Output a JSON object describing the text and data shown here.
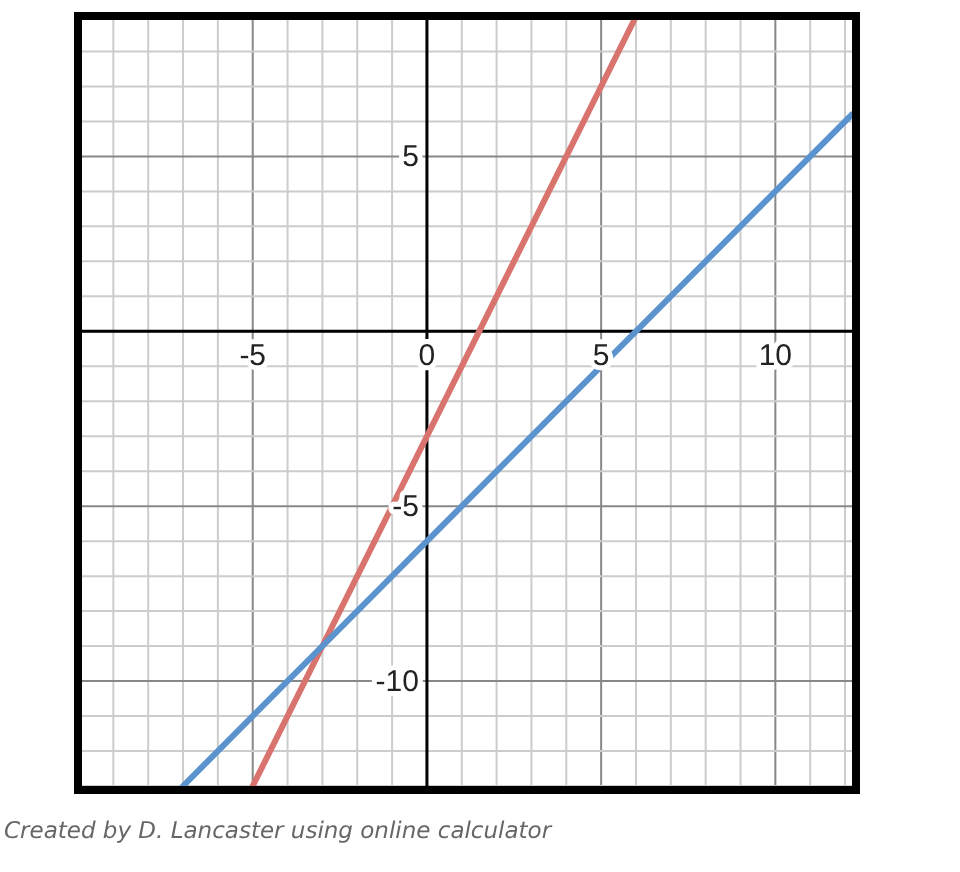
{
  "chart_data": {
    "type": "line",
    "xlim": [
      -9.9,
      12.2
    ],
    "ylim": [
      -13,
      8.9
    ],
    "xticks": [
      -5,
      0,
      5,
      10
    ],
    "yticks": [
      -10,
      -5,
      5
    ],
    "grid": true,
    "series": [
      {
        "color": "#d9736e",
        "x": [
          -5,
          5.95
        ],
        "values": [
          -13,
          8.9
        ]
      },
      {
        "color": "#5b93cf",
        "x": [
          -7,
          12.2
        ],
        "values": [
          -13,
          6.2
        ]
      }
    ],
    "annotations": [
      "Created by D. Lancaster using online calculator"
    ]
  }
}
